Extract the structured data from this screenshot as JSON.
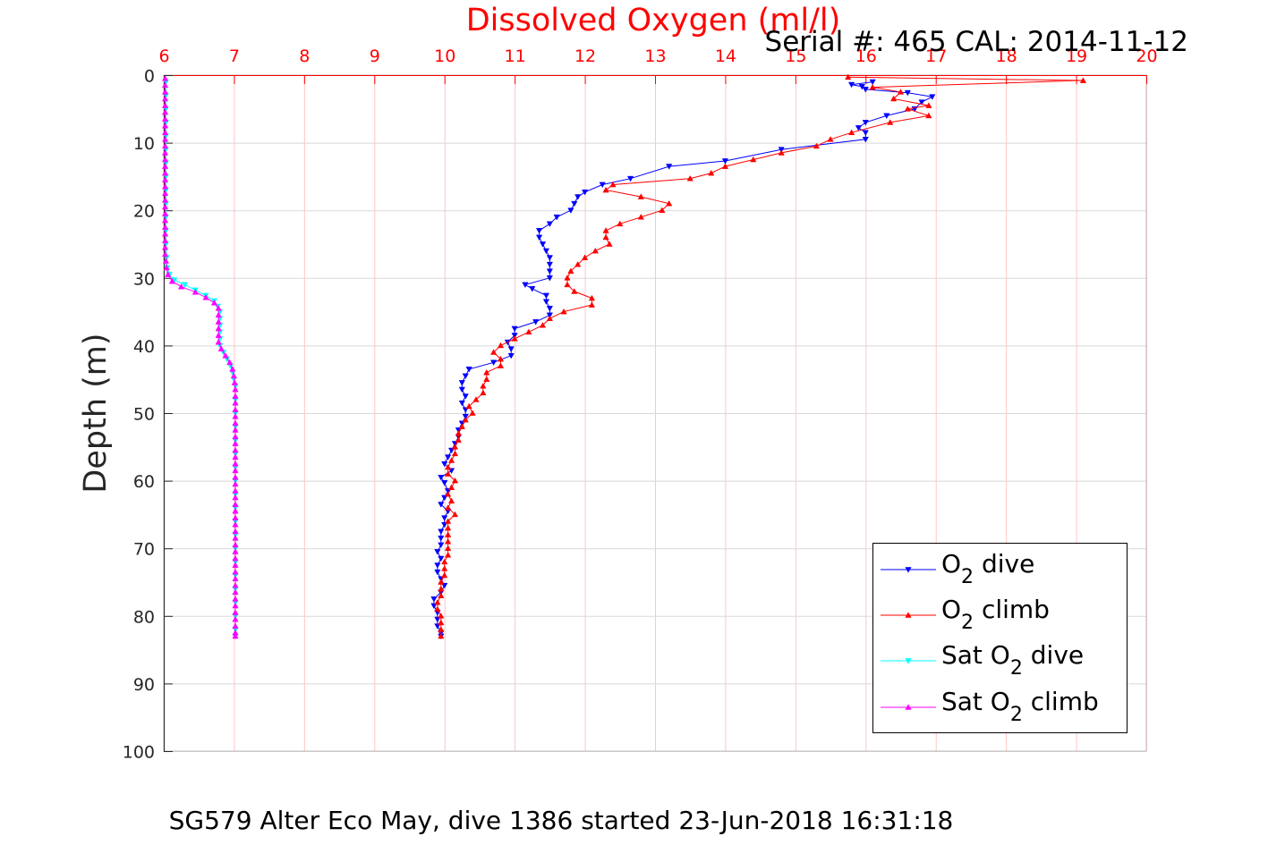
{
  "chart_data": {
    "type": "line",
    "title": "Dissolved Oxygen (ml/l)",
    "subtitle": "Serial #: 465  CAL: 2014-11-12",
    "xlabel": "",
    "ylabel": "Depth (m)",
    "footer": "SG579 Alter Eco May, dive 1386 started 23-Jun-2018 16:31:18",
    "xlim": [
      6,
      20
    ],
    "ylim": [
      0,
      100
    ],
    "y_reversed": true,
    "x_axis_position": "top",
    "grid": true,
    "legend_position": "bottom-right",
    "x_ticks": [
      "6",
      "7",
      "8",
      "9",
      "10",
      "11",
      "12",
      "13",
      "14",
      "15",
      "16",
      "17",
      "18",
      "19",
      "20"
    ],
    "y_ticks": [
      "0",
      "10",
      "20",
      "30",
      "40",
      "50",
      "60",
      "70",
      "80",
      "90",
      "100"
    ],
    "colors": {
      "axis_top": "#ff0000",
      "grid": "#d8d8d8",
      "grid_top": "#ff8080"
    },
    "series": [
      {
        "name": "O2 dive",
        "legend_text": "O",
        "legend_sub": "2",
        "legend_suffix": " dive",
        "color": "#0000ff",
        "marker": "down-triangle",
        "depth": [
          1.0,
          1.4,
          1.7,
          2.1,
          2.6,
          3.2,
          4.0,
          5.0,
          6.0,
          7.0,
          7.8,
          8.5,
          9.5,
          11.0,
          12.7,
          13.5,
          15.3,
          16.2,
          17.3,
          18.0,
          19.0,
          20.0,
          21.0,
          22.0,
          23.0,
          24.0,
          25.0,
          26.0,
          27.0,
          28.0,
          29.0,
          30.0,
          31.0,
          31.6,
          32.6,
          33.5,
          34.5,
          35.5,
          36.5,
          37.5,
          38.5,
          39.5,
          40.5,
          41.5,
          42.5,
          43.5,
          44.5,
          45.5,
          46.5,
          47.5,
          48.5,
          49.5,
          50.5,
          51.5,
          52.5,
          53.5,
          54.5,
          55.5,
          56.5,
          57.5,
          58.5,
          59.5,
          60.3,
          61.5,
          62.5,
          63.5,
          64.5,
          65.5,
          66.5,
          67.5,
          68.5,
          69.5,
          70.5,
          71.5,
          72.5,
          73.5,
          74.5,
          75.5,
          76.5,
          77.5,
          78.5,
          79.5,
          80.5,
          81.5,
          82.5,
          83.0
        ],
        "value": [
          16.1,
          15.8,
          15.95,
          16.0,
          16.6,
          16.95,
          16.8,
          16.7,
          16.3,
          16.0,
          15.9,
          16.0,
          16.0,
          14.8,
          14.0,
          13.2,
          12.65,
          12.25,
          12.0,
          11.9,
          11.85,
          11.8,
          11.6,
          11.5,
          11.35,
          11.35,
          11.4,
          11.45,
          11.5,
          11.5,
          11.5,
          11.5,
          11.15,
          11.25,
          11.45,
          11.45,
          11.5,
          11.5,
          11.3,
          11.0,
          11.0,
          10.9,
          10.95,
          10.95,
          10.7,
          10.35,
          10.3,
          10.25,
          10.25,
          10.3,
          10.25,
          10.3,
          10.3,
          10.25,
          10.2,
          10.2,
          10.15,
          10.1,
          10.05,
          10.0,
          10.1,
          9.95,
          10.0,
          10.05,
          10.0,
          9.95,
          10.05,
          10.0,
          10.0,
          9.95,
          9.95,
          9.95,
          9.9,
          9.95,
          9.9,
          9.9,
          9.95,
          10.0,
          9.95,
          9.85,
          9.85,
          9.9,
          9.9,
          9.9,
          9.95,
          9.95
        ]
      },
      {
        "name": "O2 climb",
        "legend_text": "O",
        "legend_sub": "2",
        "legend_suffix": " climb",
        "color": "#ff0000",
        "marker": "up-triangle",
        "depth": [
          0.3,
          0.8,
          1.8,
          2.5,
          3.5,
          4.5,
          5.0,
          6.0,
          7.0,
          8.5,
          9.5,
          10.5,
          11.5,
          12.5,
          13.5,
          14.5,
          15.3,
          16.2,
          17.0,
          18.0,
          19.0,
          20.0,
          21.0,
          22.0,
          23.0,
          24.0,
          25.0,
          26.0,
          27.0,
          28.0,
          29.0,
          30.0,
          31.0,
          32.0,
          33.0,
          34.0,
          35.0,
          36.0,
          37.0,
          38.0,
          39.0,
          40.0,
          41.0,
          42.0,
          43.0,
          44.0,
          45.0,
          46.0,
          47.0,
          48.0,
          49.0,
          50.0,
          51.0,
          52.0,
          53.0,
          54.0,
          55.0,
          56.0,
          57.0,
          58.0,
          59.0,
          60.0,
          61.0,
          62.0,
          63.0,
          64.0,
          65.0,
          66.0,
          67.0,
          68.0,
          69.0,
          70.0,
          71.0,
          72.0,
          73.0,
          74.0,
          75.0,
          76.0,
          77.0,
          78.0,
          79.0,
          80.0,
          81.0,
          82.0,
          83.0
        ],
        "value": [
          15.75,
          19.1,
          16.1,
          16.5,
          16.4,
          16.9,
          16.6,
          16.9,
          16.35,
          15.8,
          15.5,
          15.3,
          14.8,
          14.4,
          14.0,
          13.8,
          13.5,
          12.4,
          12.3,
          12.8,
          13.2,
          13.1,
          12.8,
          12.5,
          12.3,
          12.3,
          12.35,
          12.15,
          12.0,
          11.9,
          11.8,
          11.75,
          11.75,
          11.85,
          12.1,
          12.1,
          11.7,
          11.5,
          11.4,
          11.2,
          11.0,
          10.8,
          10.7,
          10.8,
          10.8,
          10.6,
          10.6,
          10.55,
          10.55,
          10.45,
          10.35,
          10.4,
          10.3,
          10.25,
          10.2,
          10.2,
          10.15,
          10.15,
          10.1,
          10.05,
          10.05,
          10.15,
          10.1,
          10.05,
          10.1,
          10.05,
          10.15,
          10.05,
          10.05,
          10.05,
          10.05,
          10.05,
          10.05,
          10.0,
          10.0,
          10.0,
          9.95,
          9.95,
          9.95,
          9.9,
          9.9,
          9.95,
          9.95,
          9.95,
          9.95
        ]
      },
      {
        "name": "Sat O2 dive",
        "legend_text": "Sat O",
        "legend_sub": "2",
        "legend_suffix": " dive",
        "color": "#00ffff",
        "marker": "down-triangle",
        "depth": [
          1,
          3,
          5,
          7,
          9,
          11,
          13,
          15,
          17,
          19,
          21,
          23,
          25,
          27,
          28.5,
          29.5,
          30.3,
          31.0,
          31.8,
          32.6,
          33.4,
          34.2,
          35,
          36,
          37,
          38,
          39,
          40,
          41,
          42,
          43,
          44,
          45,
          46,
          48,
          50,
          52,
          54,
          56,
          58,
          60,
          62,
          64,
          66,
          68,
          70,
          72,
          74,
          76,
          78,
          80,
          82,
          83
        ],
        "value": [
          6.03,
          6.03,
          6.03,
          6.03,
          6.03,
          6.03,
          6.03,
          6.03,
          6.03,
          6.03,
          6.03,
          6.03,
          6.03,
          6.04,
          6.05,
          6.08,
          6.15,
          6.3,
          6.45,
          6.6,
          6.72,
          6.77,
          6.8,
          6.8,
          6.8,
          6.8,
          6.8,
          6.8,
          6.85,
          6.9,
          6.95,
          6.98,
          7.0,
          7.02,
          7.02,
          7.02,
          7.02,
          7.02,
          7.02,
          7.02,
          7.02,
          7.02,
          7.02,
          7.02,
          7.02,
          7.02,
          7.02,
          7.02,
          7.02,
          7.02,
          7.02,
          7.02,
          7.02
        ]
      },
      {
        "name": "Sat O2 climb",
        "legend_text": "Sat O",
        "legend_sub": "2",
        "legend_suffix": " climb",
        "color": "#ff00ff",
        "marker": "up-triangle",
        "depth": [
          0.5,
          1.5,
          2.5,
          3.5,
          4.5,
          5.5,
          6.5,
          7.5,
          8.5,
          9.5,
          10.5,
          11.5,
          12.5,
          13.5,
          14.5,
          15.5,
          16.5,
          17.5,
          18.5,
          19.5,
          20.5,
          21.5,
          22.5,
          23.5,
          24.5,
          25.5,
          26.5,
          27.5,
          28.5,
          29.5,
          30.5,
          31.3,
          32.1,
          32.9,
          33.7,
          34.5,
          35.5,
          36.5,
          37.5,
          38.5,
          39.5,
          40.5,
          41.5,
          42.5,
          43.5,
          44.5,
          45.5,
          46.5,
          47.5,
          48.5,
          49.5,
          50.5,
          51.5,
          52.5,
          53.5,
          54.5,
          55.5,
          56.5,
          57.5,
          58.5,
          59.5,
          60.5,
          61.5,
          62.5,
          63.5,
          64.5,
          65.5,
          66.5,
          67.5,
          68.5,
          69.5,
          70.5,
          71.5,
          72.5,
          73.5,
          74.5,
          75.5,
          76.5,
          77.5,
          78.5,
          79.5,
          80.5,
          81.5,
          82.5,
          83.0
        ],
        "value": [
          6.02,
          6.02,
          6.02,
          6.02,
          6.02,
          6.02,
          6.02,
          6.02,
          6.02,
          6.02,
          6.02,
          6.02,
          6.02,
          6.02,
          6.02,
          6.02,
          6.02,
          6.02,
          6.02,
          6.02,
          6.02,
          6.02,
          6.02,
          6.02,
          6.02,
          6.02,
          6.02,
          6.03,
          6.04,
          6.06,
          6.12,
          6.25,
          6.45,
          6.6,
          6.72,
          6.78,
          6.78,
          6.78,
          6.78,
          6.78,
          6.78,
          6.82,
          6.88,
          6.94,
          6.98,
          7.0,
          7.01,
          7.02,
          7.02,
          7.02,
          7.02,
          7.02,
          7.02,
          7.02,
          7.02,
          7.02,
          7.02,
          7.02,
          7.02,
          7.02,
          7.02,
          7.02,
          7.02,
          7.02,
          7.02,
          7.02,
          7.02,
          7.02,
          7.02,
          7.02,
          7.02,
          7.02,
          7.02,
          7.02,
          7.02,
          7.02,
          7.02,
          7.02,
          7.02,
          7.02,
          7.02,
          7.02,
          7.02,
          7.02,
          7.02
        ]
      }
    ]
  }
}
